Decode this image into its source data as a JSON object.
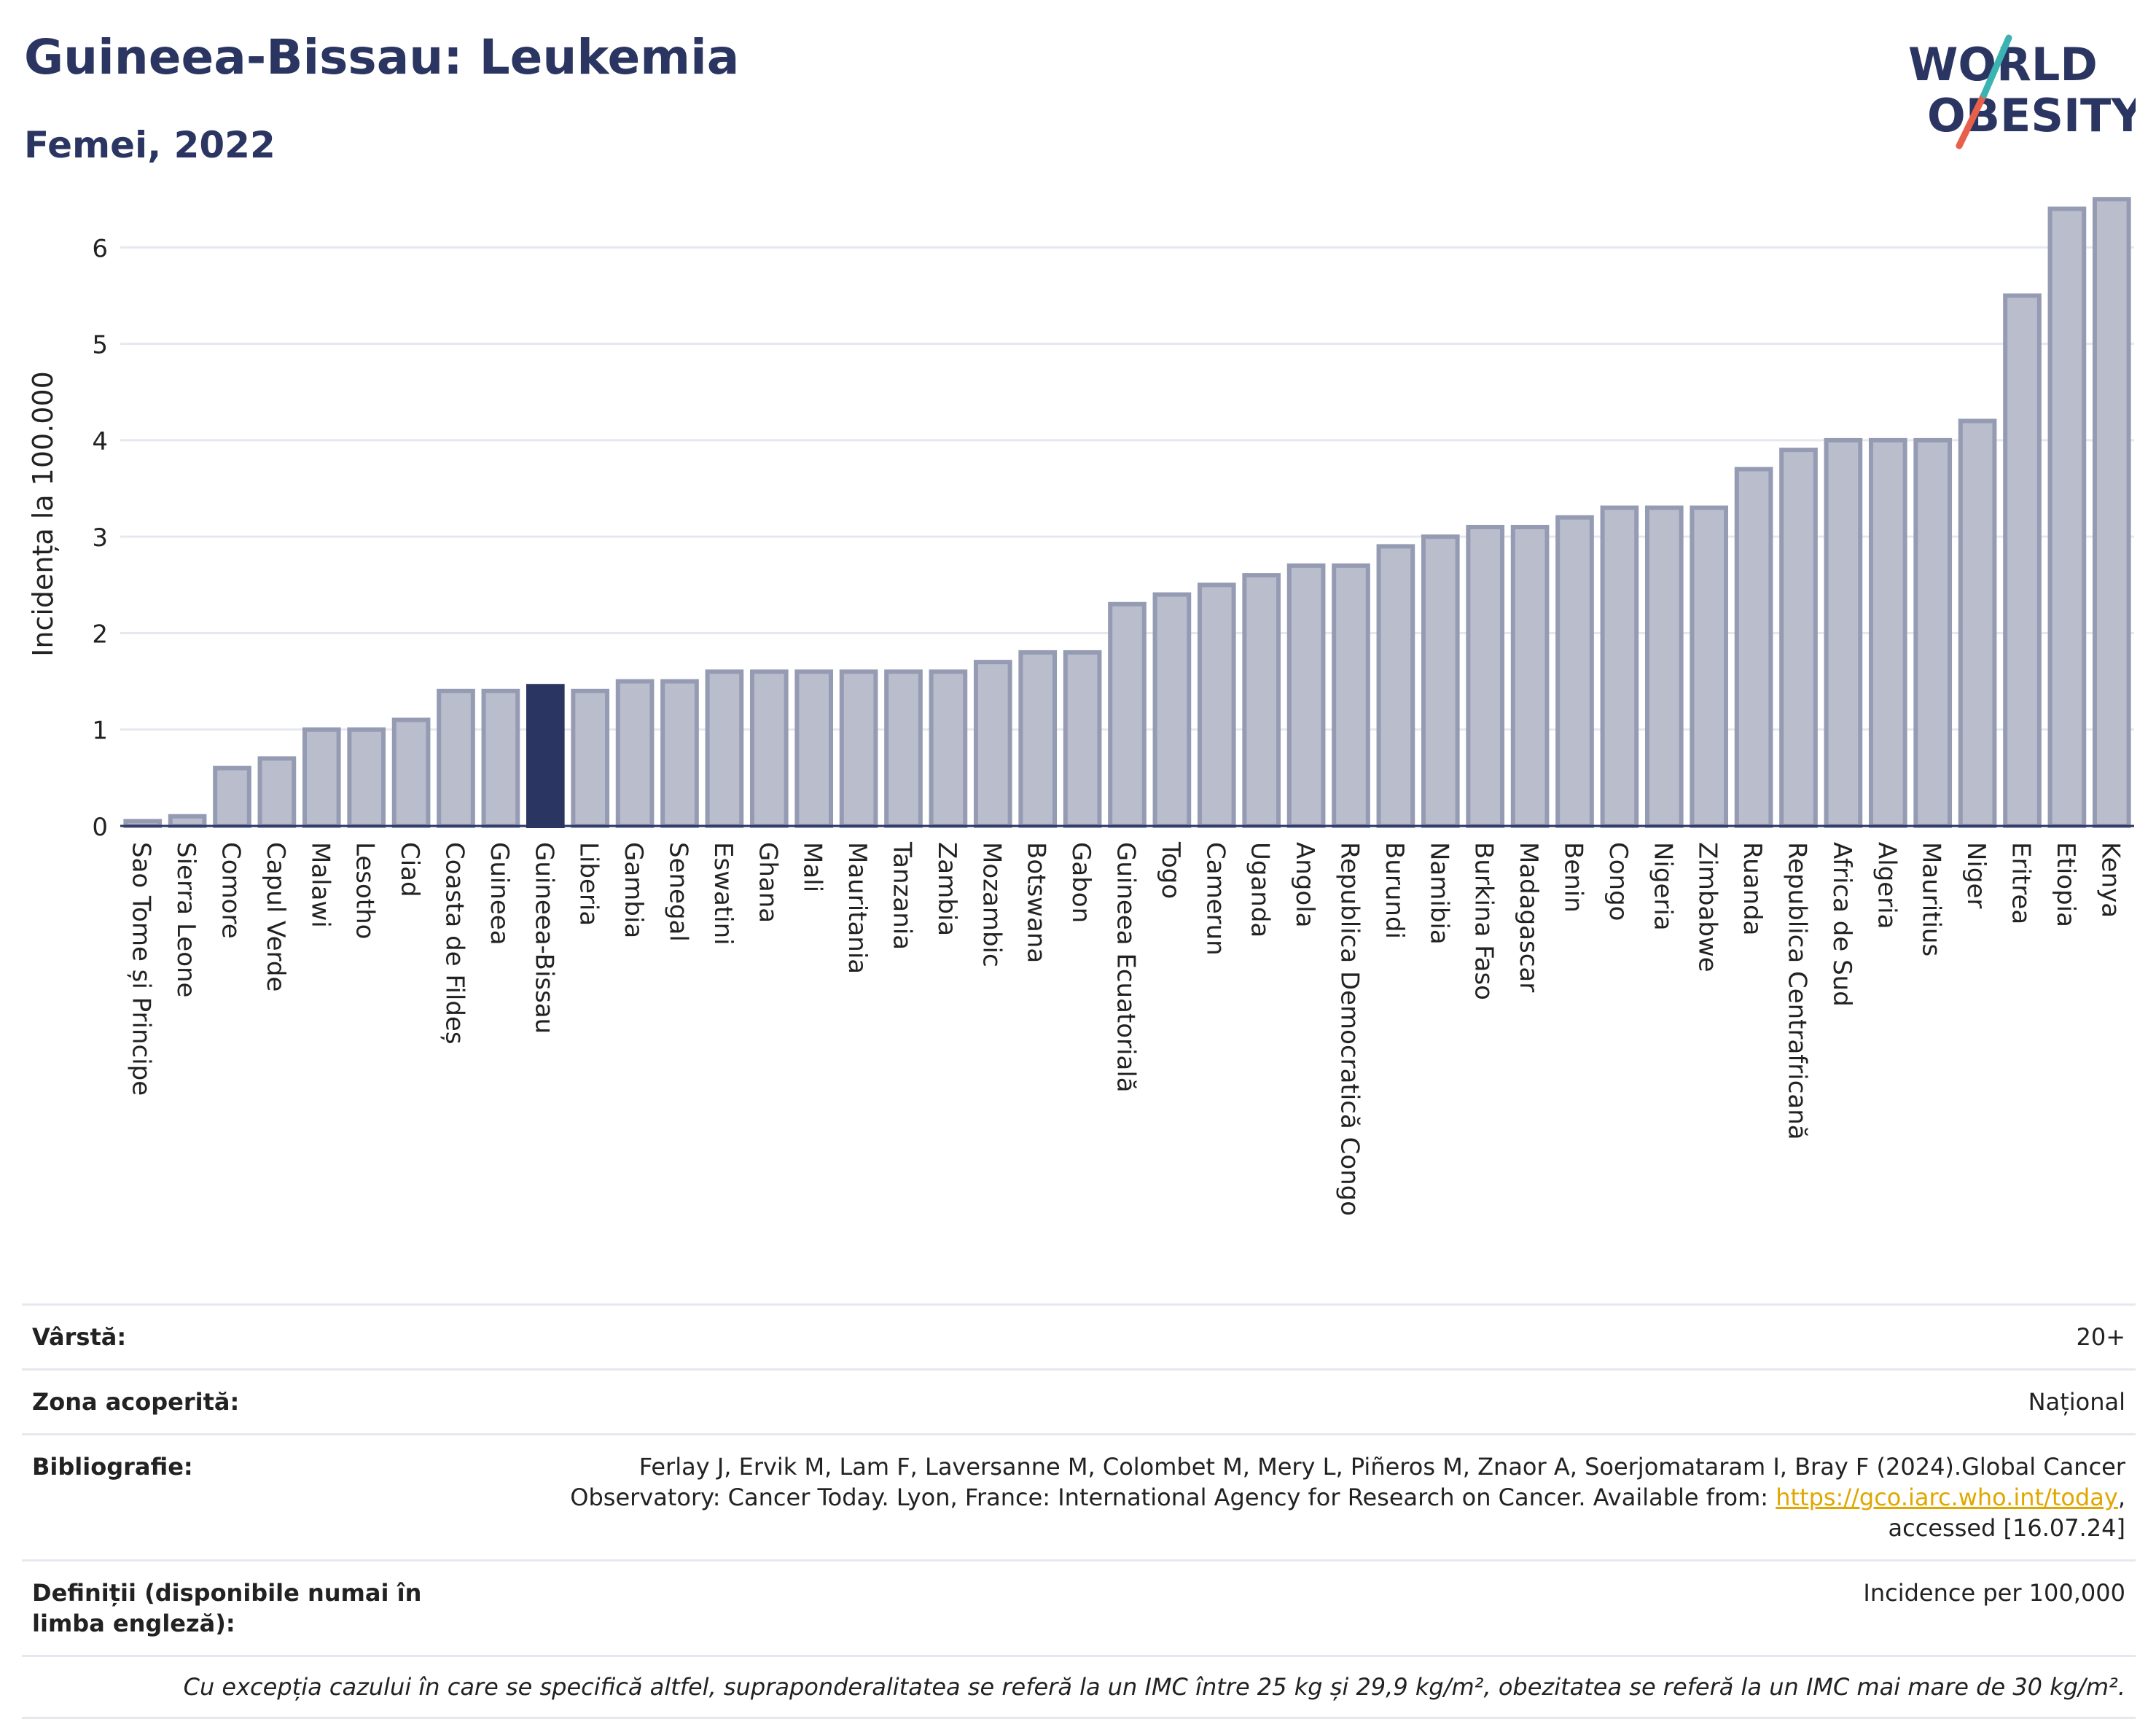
{
  "header": {
    "title": "Guineea-Bissau: Leukemia",
    "subtitle": "Femei, 2022",
    "logo_line1": "WORLD",
    "logo_line2": "OBESITY"
  },
  "colors": {
    "bar": "#b9bdcc",
    "bar_border": "#959bb3",
    "highlight": "#2b3561",
    "grid": "#e6e8ef",
    "axis": "#2b3561"
  },
  "chart_data": {
    "type": "bar",
    "ylabel": "Incidența la 100.000",
    "ylim": [
      0,
      6.6
    ],
    "yticks": [
      0,
      1,
      2,
      3,
      4,
      5,
      6
    ],
    "highlight": "Guineea-Bissau",
    "categories": [
      "Sao Tome și Principe",
      "Sierra Leone",
      "Comore",
      "Capul Verde",
      "Malawi",
      "Lesotho",
      "Ciad",
      "Coasta de Fildeș",
      "Guineea",
      "Guineea-Bissau",
      "Liberia",
      "Gambia",
      "Senegal",
      "Eswatini",
      "Ghana",
      "Mali",
      "Mauritania",
      "Tanzania",
      "Zambia",
      "Mozambic",
      "Botswana",
      "Gabon",
      "Guineea Ecuatorială",
      "Togo",
      "Camerun",
      "Uganda",
      "Angola",
      "Republica Democratică Congo",
      "Burundi",
      "Namibia",
      "Burkina Faso",
      "Madagascar",
      "Benin",
      "Congo",
      "Nigeria",
      "Zimbabwe",
      "Ruanda",
      "Republica Centrafricană",
      "Africa de Sud",
      "Algeria",
      "Mauritius",
      "Niger",
      "Eritrea",
      "Etiopia",
      "Kenya"
    ],
    "values": [
      0.05,
      0.1,
      0.6,
      0.7,
      1.0,
      1.0,
      1.1,
      1.4,
      1.4,
      1.45,
      1.4,
      1.5,
      1.5,
      1.6,
      1.6,
      1.6,
      1.6,
      1.6,
      1.6,
      1.7,
      1.8,
      1.8,
      2.3,
      2.4,
      2.5,
      2.6,
      2.7,
      2.7,
      2.9,
      3.0,
      3.1,
      3.1,
      3.2,
      3.3,
      3.3,
      3.3,
      3.7,
      3.9,
      4.0,
      4.0,
      4.0,
      4.2,
      5.5,
      6.4,
      6.5
    ]
  },
  "info": {
    "age_label": "Vârstă:",
    "age_value": "20+",
    "area_label": "Zona acoperită:",
    "area_value": "Național",
    "bib_label": "Bibliografie:",
    "bib_text1": "Ferlay J, Ervik M, Lam F, Laversanne M, Colombet M, Mery L, Piñeros M, Znaor A, Soerjomataram I, Bray F (2024).Global Cancer Observatory: Cancer Today. Lyon, France: International Agency for Research on Cancer. Available from: ",
    "bib_link": "https://gco.iarc.who.int/today",
    "bib_text2": ", accessed [16.07.24]",
    "def_label": "Definiții (disponibile numai în limba engleză):",
    "def_value": "Incidence per 100,000",
    "note": "Cu excepția cazului în care se specifică altfel, supraponderalitatea se referă la un IMC între 25 kg și 29,9 kg/m², obezitatea se referă la un IMC mai mare de 30 kg/m²."
  }
}
